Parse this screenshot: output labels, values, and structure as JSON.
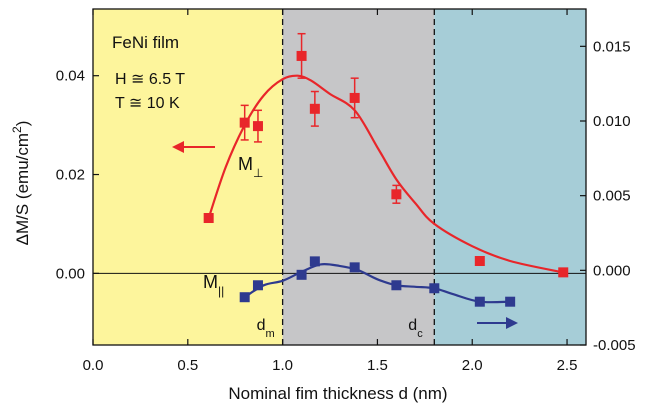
{
  "chart_data": {
    "type": "scatter",
    "xlabel": "Nominal fim thickness d (nm)",
    "ylabel": "ΔM/S (emu/cm²)",
    "xlim": [
      0.0,
      2.6
    ],
    "ylim_left": [
      -0.0145,
      0.0535
    ],
    "ylim_right": [
      -0.005,
      0.0175
    ],
    "x_ticks": [
      {
        "value": 0.0,
        "label": "0.0"
      },
      {
        "value": 0.5,
        "label": "0.5"
      },
      {
        "value": 1.0,
        "label": "1.0"
      },
      {
        "value": 1.5,
        "label": "1.5"
      },
      {
        "value": 2.0,
        "label": "2.0"
      },
      {
        "value": 2.5,
        "label": "2.5"
      }
    ],
    "y_left_ticks": [
      {
        "value": 0.0,
        "label": "0.00"
      },
      {
        "value": 0.02,
        "label": "0.02"
      },
      {
        "value": 0.04,
        "label": "0.04"
      }
    ],
    "y_right_ticks": [
      {
        "value": -0.005,
        "label": "-0.005"
      },
      {
        "value": 0.0,
        "label": "0.000"
      },
      {
        "value": 0.005,
        "label": "0.005"
      },
      {
        "value": 0.01,
        "label": "0.010"
      },
      {
        "value": 0.015,
        "label": "0.015"
      }
    ],
    "regions": [
      {
        "from": 0.0,
        "to": 1.0,
        "color": "#fdf59c"
      },
      {
        "from": 1.0,
        "to": 1.8,
        "color": "#c6c6c8"
      },
      {
        "from": 1.8,
        "to": 2.6,
        "color": "#a6cdd7"
      }
    ],
    "vlines": [
      {
        "x": 1.0,
        "label": "d",
        "sub": "m"
      },
      {
        "x": 1.8,
        "label": "d",
        "sub": "c"
      }
    ],
    "zero_line": true,
    "annotations": {
      "sample": "FeNi film",
      "field": "H ≅ 6.5 T",
      "temperature": "T ≅ 10 K"
    },
    "series": [
      {
        "name": "M⊥",
        "label_main": "M",
        "label_sub": "⊥",
        "axis": "left",
        "color": "#e8262a",
        "points": [
          {
            "x": 0.61,
            "y": 0.0112,
            "err": 0.0008
          },
          {
            "x": 0.8,
            "y": 0.0305,
            "err": 0.0035
          },
          {
            "x": 0.87,
            "y": 0.0298,
            "err": 0.0032
          },
          {
            "x": 1.1,
            "y": 0.044,
            "err": 0.0045
          },
          {
            "x": 1.17,
            "y": 0.0333,
            "err": 0.0035
          },
          {
            "x": 1.38,
            "y": 0.0355,
            "err": 0.004
          },
          {
            "x": 1.6,
            "y": 0.016,
            "err": 0.0018
          },
          {
            "x": 2.04,
            "y": 0.0025,
            "err": 0
          },
          {
            "x": 2.48,
            "y": 0.0002,
            "err": 0
          }
        ],
        "fit": [
          {
            "x": 0.61,
            "y": 0.0112
          },
          {
            "x": 0.7,
            "y": 0.0215
          },
          {
            "x": 0.8,
            "y": 0.03
          },
          {
            "x": 0.9,
            "y": 0.036
          },
          {
            "x": 1.0,
            "y": 0.0393
          },
          {
            "x": 1.08,
            "y": 0.04
          },
          {
            "x": 1.15,
            "y": 0.039
          },
          {
            "x": 1.25,
            "y": 0.0363
          },
          {
            "x": 1.38,
            "y": 0.033
          },
          {
            "x": 1.5,
            "y": 0.0255
          },
          {
            "x": 1.6,
            "y": 0.019
          },
          {
            "x": 1.7,
            "y": 0.0142
          },
          {
            "x": 1.8,
            "y": 0.01
          },
          {
            "x": 2.0,
            "y": 0.0055
          },
          {
            "x": 2.2,
            "y": 0.0025
          },
          {
            "x": 2.48,
            "y": 0.0002
          }
        ]
      },
      {
        "name": "M||",
        "label_main": "M",
        "label_sub": "||",
        "axis": "right",
        "color": "#2e3a8f",
        "points": [
          {
            "x": 0.8,
            "y": -0.0018
          },
          {
            "x": 0.87,
            "y": -0.001
          },
          {
            "x": 1.1,
            "y": -0.0003
          },
          {
            "x": 1.17,
            "y": 0.0006
          },
          {
            "x": 1.38,
            "y": 0.0002
          },
          {
            "x": 1.6,
            "y": -0.001
          },
          {
            "x": 1.8,
            "y": -0.0012
          },
          {
            "x": 2.04,
            "y": -0.0021
          },
          {
            "x": 2.2,
            "y": -0.0021
          }
        ],
        "fit": [
          {
            "x": 0.8,
            "y": -0.0018
          },
          {
            "x": 0.9,
            "y": -0.001
          },
          {
            "x": 1.0,
            "y": -0.0007
          },
          {
            "x": 1.1,
            "y": -0.0001
          },
          {
            "x": 1.2,
            "y": 0.0004
          },
          {
            "x": 1.3,
            "y": 0.0003
          },
          {
            "x": 1.4,
            "y": 0.0
          },
          {
            "x": 1.5,
            "y": -0.0006
          },
          {
            "x": 1.6,
            "y": -0.001
          },
          {
            "x": 1.7,
            "y": -0.0011
          },
          {
            "x": 1.8,
            "y": -0.0012
          },
          {
            "x": 1.9,
            "y": -0.0016
          },
          {
            "x": 2.04,
            "y": -0.0021
          },
          {
            "x": 2.2,
            "y": -0.0021
          }
        ]
      }
    ]
  }
}
